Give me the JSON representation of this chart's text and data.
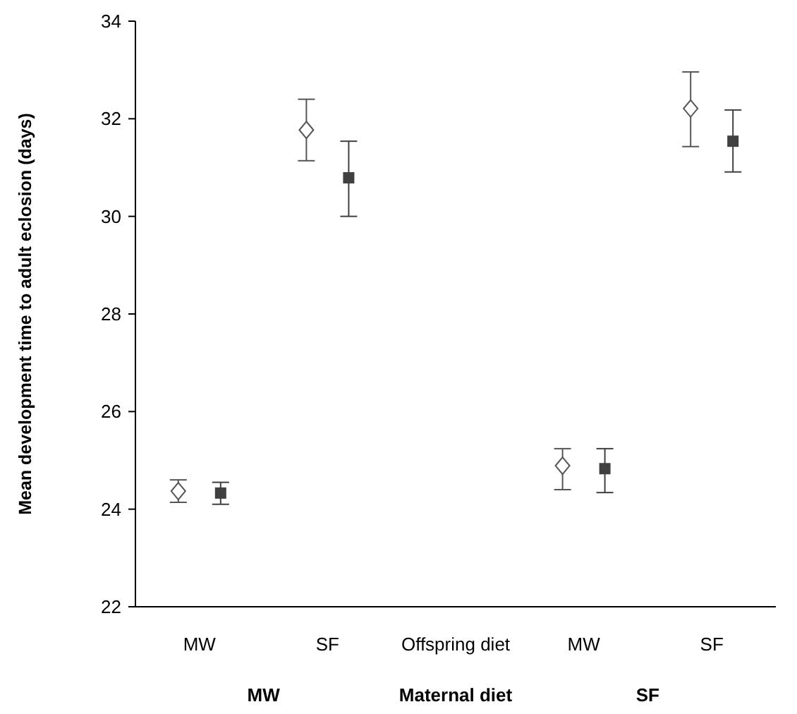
{
  "chart_data": {
    "type": "scatter",
    "ylabel": "Mean development time to adult eclosion (days)",
    "categories": [
      "MW",
      "SF",
      "Offspring diet",
      "MW",
      "SF"
    ],
    "series": [
      {
        "color": "#555555",
        "marker": "diamond",
        "values": [
          24.37,
          31.77,
          null,
          24.89,
          32.21
        ],
        "errors": [
          [
            24.14,
            24.6
          ],
          [
            31.14,
            32.4
          ],
          null,
          [
            24.4,
            25.24
          ],
          [
            31.43,
            32.96
          ]
        ]
      },
      {
        "color": "#404040",
        "marker": "square",
        "values": [
          24.33,
          30.79,
          null,
          24.83,
          31.54
        ],
        "errors": [
          [
            24.1,
            24.55
          ],
          [
            30.0,
            31.54
          ],
          null,
          [
            24.34,
            25.24
          ],
          [
            30.91,
            32.18
          ]
        ]
      }
    ],
    "ylim": [
      22,
      34
    ],
    "yticks": [
      22,
      24,
      26,
      28,
      30,
      32,
      34
    ],
    "grid": false,
    "annotations": [
      "MW",
      "Maternal diet",
      "SF"
    ]
  }
}
